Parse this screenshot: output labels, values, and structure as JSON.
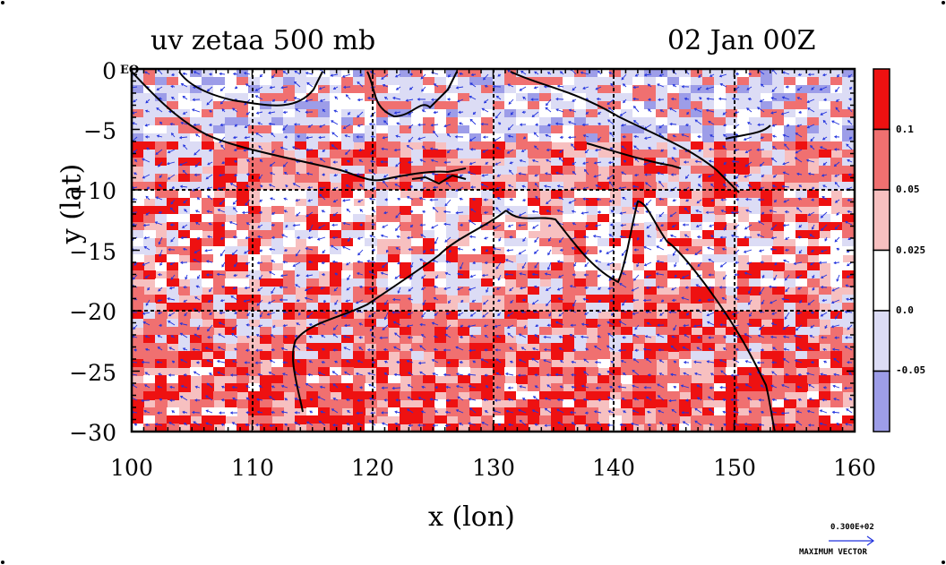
{
  "title_left": "uv zetaa 500 mb",
  "title_right": "02 Jan 00Z",
  "eq_label": "EQ",
  "xlabel": "x (lon)",
  "ylabel": "y (lat)",
  "x_ticks": [
    "100",
    "110",
    "120",
    "130",
    "140",
    "150",
    "160"
  ],
  "y_ticks": [
    "0",
    "−5",
    "−10",
    "−15",
    "−20",
    "−25",
    "−30"
  ],
  "colorbar": {
    "labels": [
      "0.1",
      "0.05",
      "0.025",
      "0.0",
      "-0.05"
    ],
    "colors": [
      "#ee1111",
      "#f07070",
      "#f7c0c0",
      "#ffffff",
      "#dcdcf5",
      "#9d9de8"
    ]
  },
  "vector_reference": {
    "value": "0.300E+02",
    "caption": "MAXIMUM VECTOR"
  },
  "map_extent": {
    "lon": [
      100,
      160
    ],
    "lat": [
      -30,
      0
    ]
  },
  "colors": {
    "wind_arrow": "#2233dd",
    "coastline": "#000000",
    "grid": "#000000"
  }
}
